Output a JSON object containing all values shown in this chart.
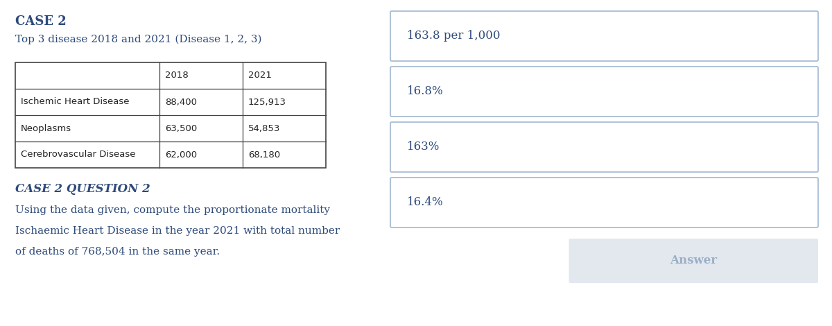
{
  "title": "CASE 2",
  "subtitle": "Top 3 disease 2018 and 2021 (Disease 1, 2, 3)",
  "table_headers": [
    "",
    "2018",
    "2021"
  ],
  "table_rows": [
    [
      "Ischemic Heart Disease",
      "88,400",
      "125,913"
    ],
    [
      "Neoplasms",
      "63,500",
      "54,853"
    ],
    [
      "Cerebrovascular Disease",
      "62,000",
      "68,180"
    ]
  ],
  "question_title": "CASE 2 QUESTION 2",
  "question_text_line1": "Using the data given, compute the proportionate mortality",
  "question_text_line2": "Ischaemic Heart Disease in the year 2021 with total number",
  "question_text_line3": "of deaths of 768,504 in the same year.",
  "options": [
    "163.8 per 1,000",
    "16.8%",
    "163%",
    "16.4%"
  ],
  "answer_button": "Answer",
  "text_color": "#2d4a7a",
  "border_color": "#a8bdd4",
  "answer_bg": "#e3e8ef",
  "answer_text_color": "#9aafc5",
  "bg_color": "#ffffff",
  "table_border_color": "#444444"
}
